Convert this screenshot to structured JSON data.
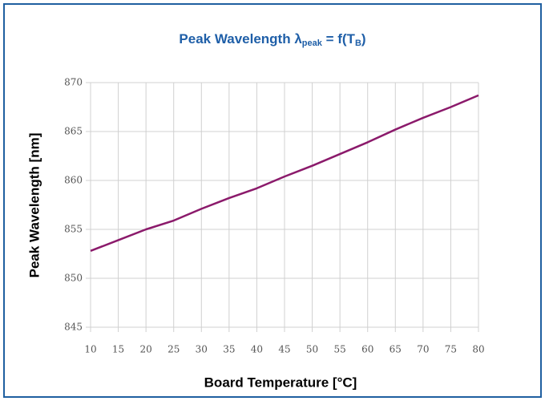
{
  "chart_data": {
    "type": "line",
    "title": {
      "main": "Peak Wavelength λ",
      "sub": "peak",
      "middle": " = f(T",
      "sub2": "B",
      "end": ")"
    },
    "xlabel": "Board Temperature [°C]",
    "ylabel": "Peak Wavelength [nm]",
    "x": [
      10,
      15,
      20,
      25,
      30,
      35,
      40,
      45,
      50,
      55,
      60,
      65,
      70,
      75,
      80
    ],
    "series": [
      {
        "color": "#8b1a6b",
        "values": [
          852.8,
          853.9,
          855.0,
          855.9,
          857.1,
          858.2,
          859.2,
          860.4,
          861.5,
          862.7,
          863.9,
          865.2,
          866.4,
          867.5,
          868.7
        ]
      }
    ],
    "xlim": [
      10,
      80
    ],
    "xticks": [
      10,
      15,
      20,
      25,
      30,
      35,
      40,
      45,
      50,
      55,
      60,
      65,
      70,
      75,
      80
    ],
    "ylim": [
      845,
      870
    ],
    "yticks": [
      845,
      850,
      855,
      860,
      865,
      870
    ],
    "grid": true
  }
}
